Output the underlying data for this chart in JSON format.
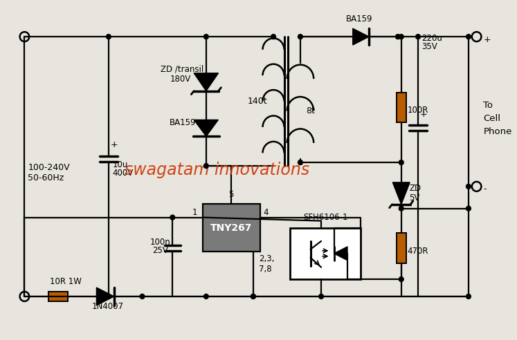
{
  "bg_color": "#e8e4de",
  "line_color": "#000000",
  "resistor_color": "#b85c00",
  "watermark_text": "swagatam innovations",
  "watermark_color": "#cc3300",
  "watermark_fontsize": 17,
  "labels": {
    "input_voltage": "100-240V\n50-60Hz",
    "resistor_bottom": "10R 1W",
    "diode_bottom": "1N4007",
    "cap_left_val": "10u",
    "cap_left_v": "400V",
    "zd_transil": "ZD /transil\n180V",
    "ba159_left": "BA159",
    "transformer_left": "140t",
    "transformer_right": "8t",
    "ic_name": "TNY267",
    "pin1": "1",
    "pin4": "4",
    "pin5": "5",
    "pins238": "2,3,\n7,8",
    "cap_feedback_val": "100n",
    "cap_feedback_v": "25V",
    "optocoupler": "SFH6106-1",
    "ba159_right": "BA159",
    "cap_out_val": "220u",
    "cap_out_v": "35V",
    "resistor_100r": "100R",
    "zd_5v_label": "ZD",
    "zd_5v_v": "5V",
    "resistor_470r": "470R",
    "to_cell": "To\nCell\nPhone",
    "plus": "+",
    "minus": "-"
  }
}
